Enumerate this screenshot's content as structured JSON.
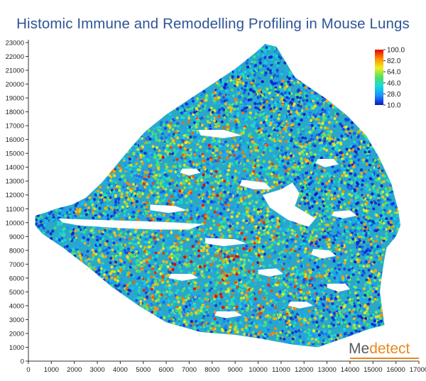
{
  "chart_data": {
    "type": "scatter",
    "title": "Histomic Immune and Remodelling Profiling in Mouse Lungs",
    "xlabel": "",
    "ylabel": "",
    "xlim": [
      0,
      17000
    ],
    "ylim": [
      0,
      23000
    ],
    "x_ticks": [
      0,
      1000,
      2000,
      3000,
      4000,
      5000,
      6000,
      7000,
      8000,
      9000,
      10000,
      11000,
      12000,
      13000,
      14000,
      15000,
      16000,
      17000
    ],
    "y_ticks": [
      0,
      1000,
      2000,
      3000,
      4000,
      5000,
      6000,
      7000,
      8000,
      9000,
      10000,
      11000,
      12000,
      13000,
      14000,
      15000,
      16000,
      17000,
      18000,
      19000,
      20000,
      21000,
      22000,
      23000
    ],
    "grid": false,
    "colorbar": {
      "labels": [
        "100.0",
        "82.0",
        "64.0",
        "46.0",
        "28.0",
        "10.0"
      ],
      "min": 10,
      "max": 100,
      "colors": [
        "#0a14c8",
        "#1e90ff",
        "#14dcdc",
        "#50e060",
        "#f0f020",
        "#ff8c00",
        "#e60000"
      ],
      "placement": "top-right"
    },
    "tissue_outline": [
      [
        300,
        10500
      ],
      [
        700,
        10700
      ],
      [
        1200,
        11000
      ],
      [
        1900,
        11300
      ],
      [
        2500,
        11800
      ],
      [
        3200,
        12900
      ],
      [
        3800,
        14100
      ],
      [
        4400,
        15300
      ],
      [
        5100,
        16600
      ],
      [
        6000,
        17800
      ],
      [
        7000,
        18900
      ],
      [
        8000,
        20000
      ],
      [
        9000,
        21100
      ],
      [
        9900,
        22300
      ],
      [
        10300,
        22900
      ],
      [
        10800,
        22700
      ],
      [
        11200,
        21600
      ],
      [
        11600,
        20500
      ],
      [
        12200,
        19800
      ],
      [
        13000,
        18900
      ],
      [
        13900,
        17700
      ],
      [
        14700,
        16300
      ],
      [
        15300,
        14600
      ],
      [
        15800,
        12800
      ],
      [
        16100,
        10900
      ],
      [
        16200,
        9800
      ],
      [
        16000,
        9000
      ],
      [
        15600,
        8200
      ],
      [
        15500,
        7400
      ],
      [
        15400,
        6300
      ],
      [
        15300,
        5000
      ],
      [
        15400,
        3800
      ],
      [
        15500,
        2600
      ],
      [
        14800,
        2300
      ],
      [
        13800,
        1700
      ],
      [
        12600,
        1000
      ],
      [
        11500,
        1200
      ],
      [
        10200,
        1600
      ],
      [
        9000,
        1900
      ],
      [
        7500,
        2100
      ],
      [
        6000,
        2800
      ],
      [
        4800,
        4000
      ],
      [
        3600,
        5400
      ],
      [
        2600,
        6800
      ],
      [
        1500,
        8200
      ],
      [
        600,
        9200
      ],
      [
        300,
        9800
      ]
    ],
    "voids": [
      [
        [
          11000,
          12400
        ],
        [
          11500,
          12900
        ],
        [
          11800,
          12100
        ],
        [
          11600,
          11200
        ],
        [
          12500,
          10300
        ],
        [
          12200,
          9700
        ],
        [
          11300,
          10200
        ],
        [
          10500,
          11100
        ],
        [
          10200,
          12000
        ]
      ],
      [
        [
          1300,
          10300
        ],
        [
          3000,
          10200
        ],
        [
          5000,
          10100
        ],
        [
          6500,
          10000
        ],
        [
          7600,
          9900
        ],
        [
          7000,
          9500
        ],
        [
          5500,
          9500
        ],
        [
          4000,
          9600
        ],
        [
          2200,
          9800
        ],
        [
          1500,
          10000
        ]
      ],
      [
        [
          7400,
          16700
        ],
        [
          8500,
          16700
        ],
        [
          9300,
          16300
        ],
        [
          8500,
          16100
        ],
        [
          7500,
          16300
        ]
      ],
      [
        [
          9300,
          13100
        ],
        [
          10300,
          12900
        ],
        [
          10600,
          12400
        ],
        [
          9800,
          12400
        ],
        [
          9200,
          12700
        ]
      ],
      [
        [
          5300,
          11300
        ],
        [
          6400,
          11200
        ],
        [
          6900,
          10900
        ],
        [
          6100,
          10700
        ],
        [
          5300,
          10900
        ]
      ],
      [
        [
          7700,
          8900
        ],
        [
          9000,
          8800
        ],
        [
          9500,
          8500
        ],
        [
          8500,
          8300
        ],
        [
          7700,
          8500
        ]
      ],
      [
        [
          12400,
          8100
        ],
        [
          13100,
          8000
        ],
        [
          13400,
          7600
        ],
        [
          12800,
          7400
        ],
        [
          12300,
          7700
        ]
      ],
      [
        [
          10000,
          6600
        ],
        [
          10800,
          6700
        ],
        [
          11100,
          6300
        ],
        [
          10500,
          6100
        ],
        [
          10000,
          6300
        ]
      ],
      [
        [
          6200,
          6300
        ],
        [
          7100,
          6300
        ],
        [
          7400,
          6000
        ],
        [
          6700,
          5800
        ],
        [
          6100,
          6000
        ]
      ],
      [
        [
          13000,
          5600
        ],
        [
          13800,
          5600
        ],
        [
          14000,
          5200
        ],
        [
          13500,
          5000
        ],
        [
          13000,
          5300
        ]
      ],
      [
        [
          11400,
          4300
        ],
        [
          12100,
          4300
        ],
        [
          12400,
          4000
        ],
        [
          11800,
          3800
        ],
        [
          11300,
          4000
        ]
      ],
      [
        [
          8200,
          3600
        ],
        [
          9000,
          3600
        ],
        [
          9300,
          3300
        ],
        [
          8600,
          3100
        ],
        [
          8100,
          3300
        ]
      ],
      [
        [
          13300,
          10800
        ],
        [
          14000,
          10900
        ],
        [
          14300,
          10500
        ],
        [
          13700,
          10300
        ],
        [
          13200,
          10500
        ]
      ],
      [
        [
          12600,
          14600
        ],
        [
          13300,
          14600
        ],
        [
          13500,
          14200
        ],
        [
          12900,
          14000
        ],
        [
          12500,
          14300
        ]
      ],
      [
        [
          6700,
          13900
        ],
        [
          7300,
          13900
        ],
        [
          7500,
          13600
        ],
        [
          7000,
          13400
        ],
        [
          6600,
          13600
        ]
      ]
    ]
  },
  "branding": {
    "logo_me": "Me",
    "logo_rest": "detect",
    "brand_color": "#e8891c",
    "grey_color": "#5a5a5a"
  }
}
